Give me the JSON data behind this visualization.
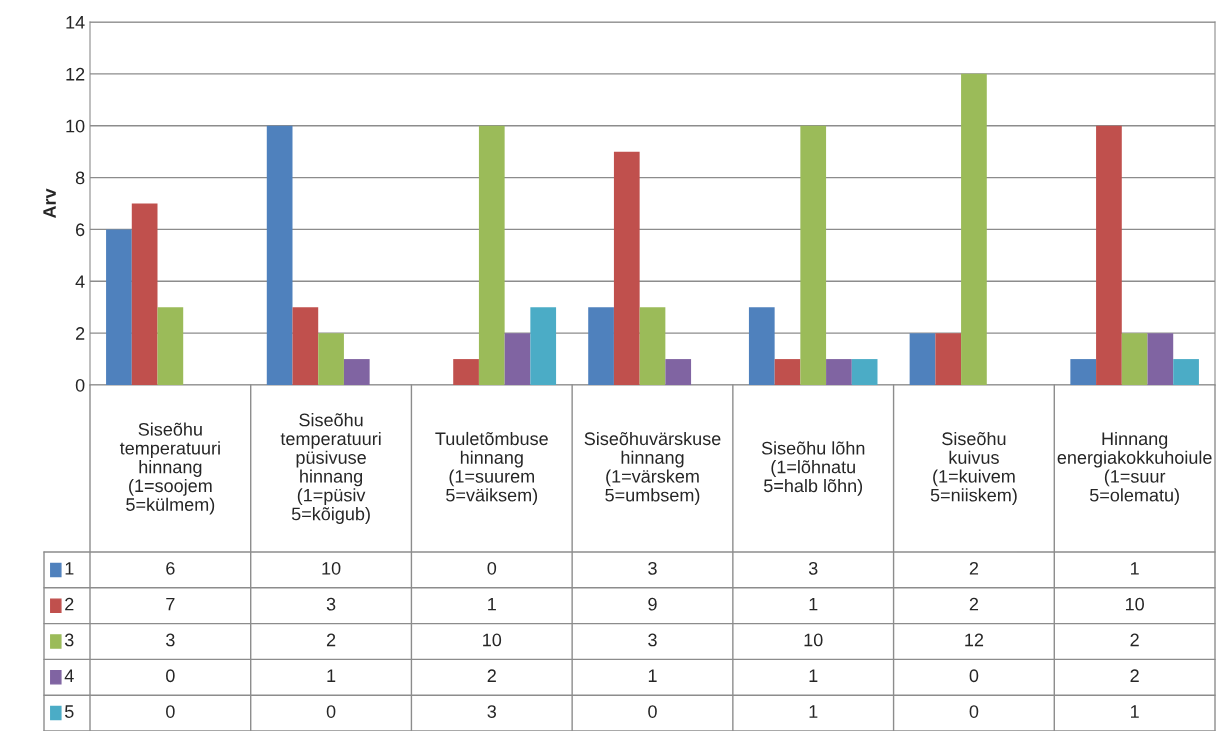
{
  "chart_data": {
    "type": "bar",
    "ylabel": "Arv",
    "categories": [
      "Siseõhu\ntemperatuuri\nhinnang\n(1=soojem\n5=külmem)",
      "Siseõhu\ntemperatuuri\npüsivuse\nhinnang\n(1=püsiv\n5=kõigub)",
      "Tuuletõmbuse\nhinnang\n(1=suurem\n5=väiksem)",
      "Siseõhuvärskuse\nhinnang\n(1=värskem\n5=umbsem)",
      "Siseõhu lõhn\n(1=lõhnatu\n5=halb lõhn)",
      "Siseõhu\nkuivus\n(1=kuivem\n5=niiskem)",
      "Hinnang\nenergiakokkuhoiule\n(1=suur\n5=olematu)"
    ],
    "series": [
      {
        "name": "1",
        "color": "#4f81bd",
        "values": [
          6,
          10,
          0,
          3,
          3,
          2,
          1
        ]
      },
      {
        "name": "2",
        "color": "#c0504d",
        "values": [
          7,
          3,
          1,
          9,
          1,
          2,
          10
        ]
      },
      {
        "name": "3",
        "color": "#9bbb59",
        "values": [
          3,
          2,
          10,
          3,
          10,
          12,
          2
        ]
      },
      {
        "name": "4",
        "color": "#8064a2",
        "values": [
          0,
          1,
          2,
          1,
          1,
          0,
          2
        ]
      },
      {
        "name": "5",
        "color": "#4bacc6",
        "values": [
          0,
          0,
          3,
          0,
          1,
          0,
          1
        ]
      }
    ],
    "ylim": [
      0,
      14
    ],
    "yticks": [
      0,
      2,
      4,
      6,
      8,
      10,
      12,
      14
    ],
    "grid": "y",
    "data_labels": true,
    "legend": "bottom left"
  }
}
